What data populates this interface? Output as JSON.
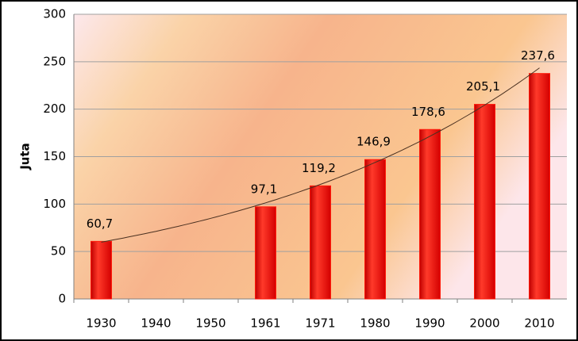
{
  "chart_data": {
    "type": "bar",
    "y_label": "Juta",
    "categories": [
      "1930",
      "1940",
      "1950",
      "1961",
      "1971",
      "1980",
      "1990",
      "2000",
      "2010"
    ],
    "values": [
      60.7,
      null,
      null,
      97.1,
      119.2,
      146.9,
      178.6,
      205.1,
      237.6
    ],
    "value_labels": [
      "60,7",
      null,
      null,
      "97,1",
      "119,2",
      "146,9",
      "178,6",
      "205,1",
      "237,6"
    ],
    "color": "#ff1a0a",
    "trendline": "exponential",
    "ylim": [
      0,
      300
    ],
    "yticks": [
      0,
      50,
      100,
      150,
      200,
      250,
      300
    ],
    "grid": true
  }
}
